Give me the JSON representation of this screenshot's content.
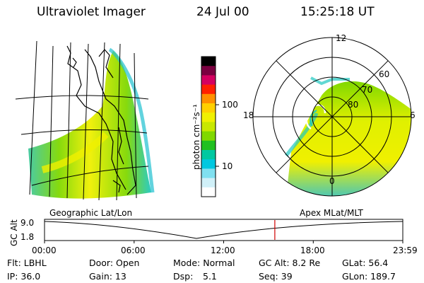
{
  "header": {
    "title": "Ultraviolet Imager",
    "date": "24 Jul 00",
    "time": "15:25:18 UT"
  },
  "colorbar": {
    "unit_label": "photon cm⁻²s⁻¹",
    "ticks": [
      "100",
      "10"
    ],
    "colors": [
      "#000000",
      "#7a0040",
      "#d40060",
      "#ff2000",
      "#ff9000",
      "#ffd000",
      "#f0f000",
      "#c8e800",
      "#80d800",
      "#20c020",
      "#00c8a0",
      "#00c8e0",
      "#80e0f0",
      "#d0f0f8",
      "#ffffff"
    ]
  },
  "left_map": {
    "label": "Geographic Lat/Lon"
  },
  "right_map": {
    "label": "Apex MLat/MLT",
    "mlt_labels": [
      "12",
      "18",
      "6",
      "0"
    ],
    "mlat_labels": [
      "60",
      "70",
      "80"
    ]
  },
  "orbit_plot": {
    "ylabel": "GC Alt",
    "yticks": [
      "9.0",
      "1.8"
    ],
    "xticks": [
      "00:00",
      "06:00",
      "12:00",
      "18:00",
      "23:59"
    ],
    "current_time_marker": "15:25",
    "marker_color": "#d00000"
  },
  "info": {
    "flt": "Flt: LBHL",
    "door": "Door: Open",
    "mode": "Mode: Normal",
    "gcalt": "GC Alt: 8.2 Re",
    "glat": "GLat: 56.4",
    "ip": "IP: 36.0",
    "gain": "Gain: 13",
    "dsp_label": "Dsp:",
    "dsp_value": "5.1",
    "seq": "Seq: 39",
    "glon": "GLon: 189.7"
  }
}
